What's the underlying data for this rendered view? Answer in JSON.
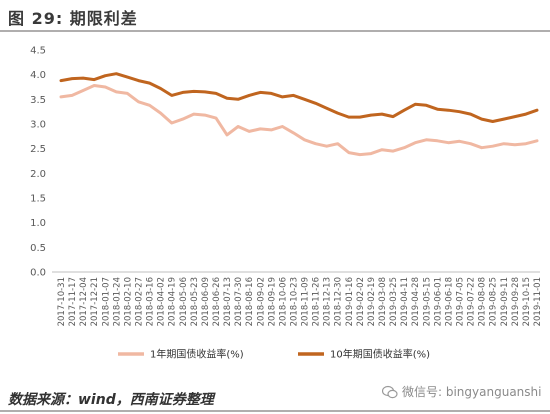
{
  "figure": {
    "title": "图 29:  期限利差",
    "source": "数据来源：wind，西南证券整理",
    "watermark": "微信号: bingyanguanshi"
  },
  "chart_data": {
    "type": "line",
    "yticks": [
      "4.5",
      "4.0",
      "3.5",
      "3.0",
      "2.5",
      "2.0",
      "1.5",
      "1.0",
      "0.5",
      "0.0"
    ],
    "ylim": [
      0,
      4.5
    ],
    "grid": false,
    "legend_position": "bottom",
    "x": [
      "2017-10-31",
      "2017-11-17",
      "2017-12-04",
      "2017-12-21",
      "2018-01-07",
      "2018-01-24",
      "2018-02-10",
      "2018-02-27",
      "2018-03-16",
      "2018-04-02",
      "2018-04-19",
      "2018-05-06",
      "2018-05-23",
      "2018-06-09",
      "2018-06-26",
      "2018-07-13",
      "2018-07-30",
      "2018-08-16",
      "2018-09-02",
      "2018-09-19",
      "2018-10-06",
      "2018-10-23",
      "2018-11-09",
      "2018-11-26",
      "2018-12-13",
      "2018-12-30",
      "2019-01-16",
      "2019-02-02",
      "2019-02-19",
      "2019-03-08",
      "2019-03-25",
      "2019-04-11",
      "2019-04-28",
      "2019-05-15",
      "2019-06-01",
      "2019-06-18",
      "2019-07-05",
      "2019-07-22",
      "2019-08-08",
      "2019-08-25",
      "2019-09-11",
      "2019-09-28",
      "2019-10-15",
      "2019-11-01"
    ],
    "series": [
      {
        "name": "1年期国债收益率(%)",
        "color": "#f0b8a2",
        "values": [
          3.55,
          3.58,
          3.68,
          3.78,
          3.75,
          3.65,
          3.62,
          3.45,
          3.38,
          3.22,
          3.02,
          3.1,
          3.2,
          3.18,
          3.12,
          2.78,
          2.95,
          2.85,
          2.9,
          2.88,
          2.95,
          2.82,
          2.68,
          2.6,
          2.55,
          2.6,
          2.42,
          2.38,
          2.4,
          2.48,
          2.45,
          2.52,
          2.62,
          2.68,
          2.66,
          2.62,
          2.65,
          2.6,
          2.52,
          2.55,
          2.6,
          2.58,
          2.6,
          2.66
        ]
      },
      {
        "name": "10年期国债收益率(%)",
        "color": "#c0651f",
        "values": [
          3.88,
          3.92,
          3.93,
          3.9,
          3.98,
          4.02,
          3.95,
          3.88,
          3.83,
          3.72,
          3.58,
          3.64,
          3.66,
          3.65,
          3.62,
          3.52,
          3.5,
          3.58,
          3.64,
          3.62,
          3.55,
          3.58,
          3.5,
          3.42,
          3.32,
          3.22,
          3.14,
          3.14,
          3.18,
          3.2,
          3.15,
          3.28,
          3.4,
          3.38,
          3.3,
          3.28,
          3.25,
          3.2,
          3.1,
          3.05,
          3.1,
          3.15,
          3.2,
          3.28
        ]
      }
    ]
  }
}
